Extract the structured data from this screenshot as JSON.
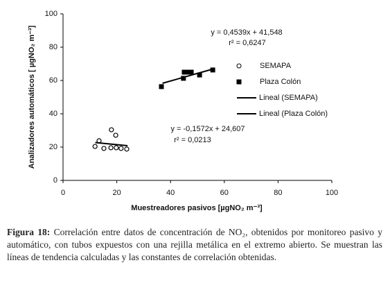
{
  "chart_data": {
    "type": "scatter",
    "xlabel": "Muestreadores pasivos [µgNO₂ m⁻³]",
    "ylabel": "Analizadores automáticos [ µgNO₂ m⁻³]",
    "xlim": [
      0,
      100
    ],
    "xticks": [
      0,
      20,
      40,
      60,
      80,
      100
    ],
    "ylim": [
      0,
      100
    ],
    "yticks": [
      0,
      20,
      40,
      60,
      80,
      100
    ],
    "series": [
      {
        "name": "SEMAPA",
        "marker": "circle",
        "color": "#000000",
        "x": [
          11.9,
          13.4,
          15.2,
          17.8,
          18.0,
          19.6,
          19.8,
          21.6,
          23.7
        ],
        "values": [
          20.4,
          23.8,
          19.2,
          19.6,
          30.4,
          27.1,
          19.6,
          19.2,
          18.8
        ]
      },
      {
        "name": "Plaza Colón",
        "marker": "square",
        "color": "#000000",
        "x": [
          36.6,
          44.8,
          45.1,
          46.6,
          47.7,
          50.8,
          55.7
        ],
        "values": [
          56.3,
          61.3,
          65.0,
          65.0,
          65.0,
          63.3,
          66.3
        ]
      },
      {
        "name": "Lineal (SEMAPA)",
        "marker": "line",
        "color": "#000000",
        "x": [
          12,
          24
        ],
        "values": [
          22.72,
          20.84
        ]
      },
      {
        "name": "Lineal (Plaza Colón)",
        "marker": "line",
        "color": "#000000",
        "x": [
          37,
          56
        ],
        "values": [
          58.34,
          66.97
        ]
      }
    ],
    "annotations": [
      "y = 0,4539x + 41,548",
      "r² = 0,6247",
      "y = -0,1572x + 24,607",
      "r² = 0,0213"
    ]
  },
  "caption": {
    "label": "Figura 18:",
    "text": "Correlación entre datos de concentración de NO₂, obtenidos por monitoreo pasivo y automático, con tubos expuestos con una rejilla metálica en el extremo abierto. Se muestran las líneas de tendencia calculadas y las constantes de correlación obtenidas."
  }
}
